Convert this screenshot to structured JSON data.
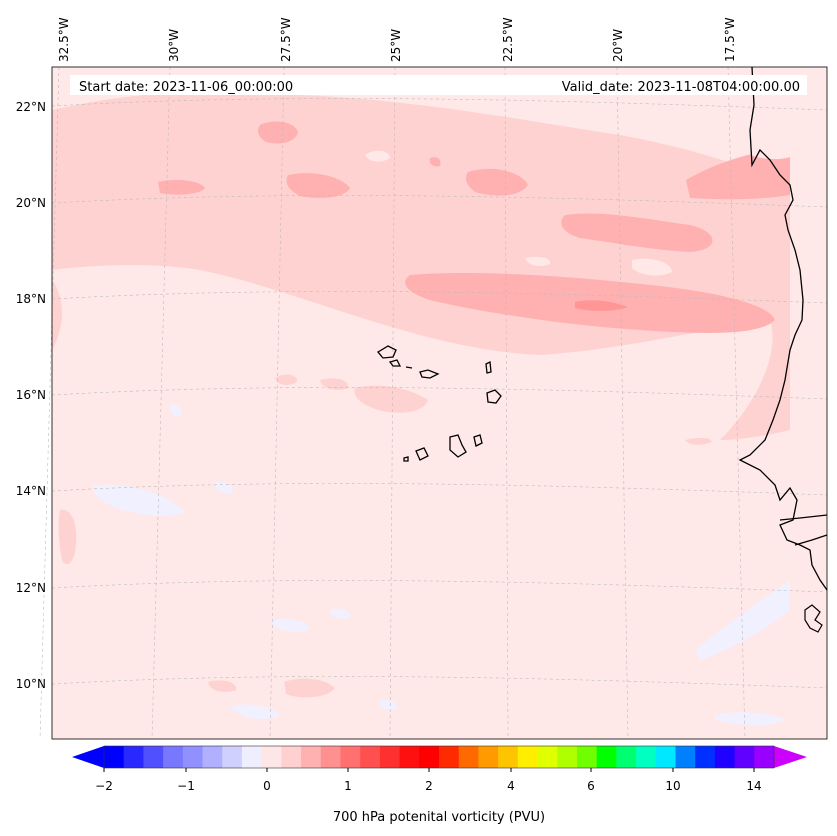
{
  "header": {
    "start_date": "Start date: 2023-11-06_00:00:00",
    "valid_date": "Valid_date: 2023-11-08T04:00:00.00"
  },
  "longitude_labels": [
    "32.5°W",
    "30°W",
    "27.5°W",
    "25°W",
    "22.5°W",
    "20°W",
    "17.5°W"
  ],
  "latitude_labels": [
    "22°N",
    "20°N",
    "18°N",
    "16°N",
    "14°N",
    "12°N",
    "10°N"
  ],
  "colorbar": {
    "label": "700 hPa potenital vorticity (PVU)",
    "tick_labels": [
      "−2",
      "−1",
      "0",
      "1",
      "2",
      "4",
      "6",
      "10",
      "14"
    ],
    "colors": [
      "#0000ff",
      "#2828ff",
      "#5050ff",
      "#7878ff",
      "#9090ff",
      "#b0b0ff",
      "#d0d0ff",
      "#eeeeff",
      "#ffe6e6",
      "#ffd0d0",
      "#ffb0b0",
      "#ff9090",
      "#ff7070",
      "#ff5050",
      "#ff3030",
      "#ff1010",
      "#ff0000",
      "#ff2a00",
      "#ff6a00",
      "#ff9a00",
      "#ffc400",
      "#ffee00",
      "#e0ff00",
      "#b0ff00",
      "#70ff00",
      "#00ff00",
      "#00ff70",
      "#00ffc0",
      "#00e8ff",
      "#0080ff",
      "#0030ff",
      "#2000ff",
      "#6000ff",
      "#9900ff"
    ],
    "extend_low_color": "#0000ff",
    "extend_high_color": "#cc00ff"
  },
  "colors": {
    "background_field": "#ffe8e8",
    "band_light": "#ffd2d2",
    "band_mid": "#ffb0b0",
    "band_core": "#ff9595",
    "negative_patch": "#f0f0ff",
    "coastline": "#000000"
  }
}
